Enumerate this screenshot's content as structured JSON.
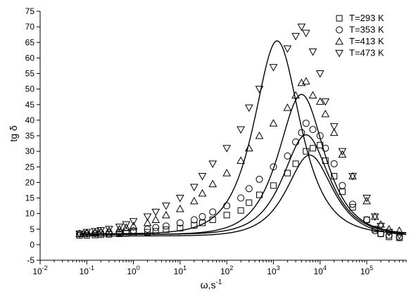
{
  "chart_data": {
    "type": "scatter",
    "xlabel": "ω,s",
    "xlabel_sup": "-1",
    "ylabel": "tg δ",
    "x_scale": "log",
    "xlim": [
      0.01,
      700000
    ],
    "ylim": [
      -5,
      75
    ],
    "yticks": [
      -5,
      0,
      5,
      10,
      15,
      20,
      25,
      30,
      35,
      40,
      45,
      50,
      55,
      60,
      65,
      70,
      75
    ],
    "xtick_base": "10",
    "xtick_exponents": [
      "-2",
      "-1",
      "0",
      "1",
      "2",
      "3",
      "4",
      "5"
    ],
    "grid": false,
    "legend_position": "top-right",
    "series": [
      {
        "name": "T=293 K",
        "marker": "square",
        "points": [
          [
            0.07,
            3.0
          ],
          [
            0.1,
            3.0
          ],
          [
            0.15,
            3.1
          ],
          [
            0.2,
            3.2
          ],
          [
            0.3,
            3.3
          ],
          [
            0.5,
            3.5
          ],
          [
            0.7,
            3.6
          ],
          [
            1,
            3.8
          ],
          [
            2,
            4.0
          ],
          [
            3,
            4.3
          ],
          [
            5,
            4.8
          ],
          [
            10,
            5.3
          ],
          [
            20,
            6.2
          ],
          [
            30,
            7.0
          ],
          [
            50,
            8.0
          ],
          [
            100,
            9.5
          ],
          [
            200,
            11.0
          ],
          [
            300,
            13.5
          ],
          [
            500,
            16.0
          ],
          [
            1000,
            19.0
          ],
          [
            2000,
            23.0
          ],
          [
            3000,
            26.0
          ],
          [
            5000,
            30.0
          ],
          [
            7000,
            31.0
          ],
          [
            10000,
            32.0
          ],
          [
            13000,
            27.0
          ],
          [
            20000,
            22.0
          ],
          [
            30000,
            17.0
          ],
          [
            50000,
            12.0
          ],
          [
            100000,
            8.0
          ],
          [
            150000,
            5.0
          ],
          [
            200000,
            3.5
          ],
          [
            300000,
            2.5
          ],
          [
            500000,
            2.2
          ]
        ],
        "fit": {
          "f0": 6000,
          "peak": 26.0,
          "base": 2.8
        }
      },
      {
        "name": "T=353 K",
        "marker": "circle",
        "points": [
          [
            0.07,
            3.5
          ],
          [
            0.1,
            3.5
          ],
          [
            0.15,
            3.6
          ],
          [
            0.2,
            3.7
          ],
          [
            0.3,
            3.8
          ],
          [
            0.5,
            4.0
          ],
          [
            0.7,
            4.2
          ],
          [
            1,
            4.5
          ],
          [
            2,
            5.0
          ],
          [
            3,
            5.5
          ],
          [
            5,
            6.0
          ],
          [
            10,
            7.0
          ],
          [
            20,
            8.0
          ],
          [
            30,
            9.0
          ],
          [
            50,
            10.5
          ],
          [
            100,
            12.5
          ],
          [
            200,
            15.0
          ],
          [
            300,
            18.0
          ],
          [
            500,
            21.0
          ],
          [
            1000,
            25.0
          ],
          [
            2000,
            28.5
          ],
          [
            3000,
            33.0
          ],
          [
            4000,
            36.0
          ],
          [
            5000,
            39.0
          ],
          [
            7000,
            37.0
          ],
          [
            10000,
            35.0
          ],
          [
            13000,
            31.0
          ],
          [
            20000,
            26.0
          ],
          [
            30000,
            19.0
          ],
          [
            50000,
            13.0
          ],
          [
            100000,
            8.0
          ],
          [
            150000,
            4.5
          ],
          [
            200000,
            3.5
          ],
          [
            300000,
            3.0
          ],
          [
            500000,
            2.5
          ]
        ],
        "fit": {
          "f0": 5000,
          "peak": 32.0,
          "base": 3.3
        }
      },
      {
        "name": "T=413 K",
        "marker": "triangle-up",
        "points": [
          [
            0.07,
            3.5
          ],
          [
            0.1,
            3.8
          ],
          [
            0.15,
            4.0
          ],
          [
            0.2,
            4.2
          ],
          [
            0.3,
            4.5
          ],
          [
            0.5,
            5.0
          ],
          [
            0.7,
            5.5
          ],
          [
            1,
            6.0
          ],
          [
            2,
            7.0
          ],
          [
            3,
            8.0
          ],
          [
            5,
            9.5
          ],
          [
            10,
            11.5
          ],
          [
            20,
            14.0
          ],
          [
            30,
            16.5
          ],
          [
            50,
            19.5
          ],
          [
            100,
            23.0
          ],
          [
            200,
            27.0
          ],
          [
            300,
            31.0
          ],
          [
            500,
            35.0
          ],
          [
            1000,
            39.0
          ],
          [
            2000,
            44.0
          ],
          [
            3000,
            48.0
          ],
          [
            4000,
            52.0
          ],
          [
            5000,
            52.5
          ],
          [
            7000,
            48.0
          ],
          [
            10000,
            46.0
          ],
          [
            13000,
            42.0
          ],
          [
            20000,
            36.0
          ],
          [
            30000,
            29.0
          ],
          [
            50000,
            22.0
          ],
          [
            100000,
            14.0
          ],
          [
            150000,
            9.0
          ],
          [
            200000,
            6.5
          ],
          [
            300000,
            5.0
          ],
          [
            500000,
            4.5
          ]
        ],
        "fit": {
          "f0": 4000,
          "peak": 45.0,
          "base": 3.3
        }
      },
      {
        "name": "T=473 K",
        "marker": "triangle-down",
        "points": [
          [
            0.07,
            3.5
          ],
          [
            0.1,
            4.0
          ],
          [
            0.15,
            4.3
          ],
          [
            0.2,
            4.6
          ],
          [
            0.3,
            5.0
          ],
          [
            0.5,
            5.7
          ],
          [
            0.7,
            6.5
          ],
          [
            1,
            7.5
          ],
          [
            2,
            9.0
          ],
          [
            3,
            10.5
          ],
          [
            5,
            12.5
          ],
          [
            10,
            15.0
          ],
          [
            20,
            18.5
          ],
          [
            30,
            22.0
          ],
          [
            50,
            26.0
          ],
          [
            100,
            31.0
          ],
          [
            200,
            37.0
          ],
          [
            300,
            44.0
          ],
          [
            500,
            50.0
          ],
          [
            1000,
            57.0
          ],
          [
            2000,
            63.0
          ],
          [
            3000,
            67.0
          ],
          [
            4000,
            70.0
          ],
          [
            5000,
            68.0
          ],
          [
            7000,
            62.0
          ],
          [
            10000,
            55.0
          ],
          [
            13000,
            46.0
          ],
          [
            20000,
            38.0
          ],
          [
            30000,
            30.0
          ],
          [
            50000,
            22.0
          ],
          [
            100000,
            15.0
          ],
          [
            150000,
            9.0
          ],
          [
            200000,
            6.0
          ],
          [
            300000,
            4.0
          ],
          [
            500000,
            3.0
          ]
        ],
        "fit": {
          "f0": 1200,
          "peak": 62.0,
          "base": 3.5
        }
      }
    ]
  }
}
